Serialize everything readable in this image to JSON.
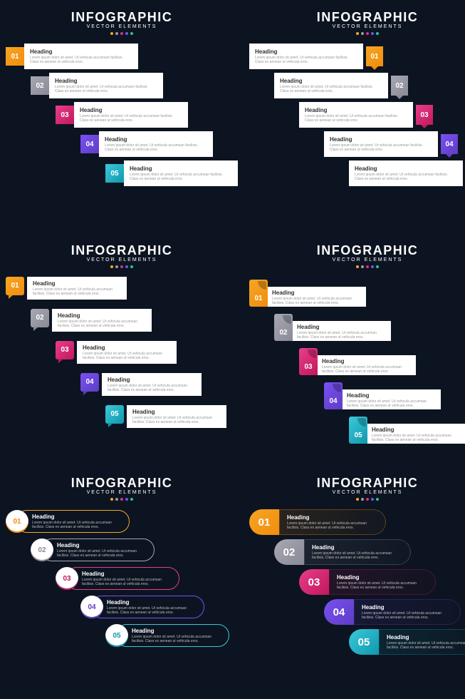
{
  "global": {
    "title": "INFOGRAPHIC",
    "subtitle": "VECTOR ELEMENTS",
    "dot_colors": [
      "#f5a623",
      "#9b9b9b",
      "#d63384",
      "#7950f2",
      "#20c997"
    ],
    "heading": "Heading",
    "body": "Lorem ipsum dolor sit amet. Ut vehicula accumsan facilisis. Class ex aenean ut vehicula eros.",
    "background": "#0c1421",
    "card_bg": "#ffffff",
    "text_color": "#333333",
    "muted_color": "#999999"
  },
  "colors": [
    {
      "num": "01",
      "fill": "#f5a623",
      "grad": "#f28c0e",
      "text": "#ffffff"
    },
    {
      "num": "02",
      "fill": "#a8a8b3",
      "grad": "#8a8a98",
      "text": "#ffffff"
    },
    {
      "num": "03",
      "fill": "#e83e8c",
      "grad": "#c2185b",
      "text": "#ffffff"
    },
    {
      "num": "04",
      "fill": "#7950f2",
      "grad": "#5f3dc4",
      "text": "#ffffff"
    },
    {
      "num": "05",
      "fill": "#3bc9db",
      "grad": "#1098ad",
      "text": "#ffffff"
    }
  ],
  "variants": {
    "v1": {
      "type": "square-badge-left",
      "stagger": 35
    },
    "v2": {
      "type": "arrow-badge-right",
      "stagger": 35
    },
    "v3": {
      "type": "speech-bubble-left",
      "stagger": 35
    },
    "v4": {
      "type": "folded-tab-left",
      "stagger": 35
    },
    "v5": {
      "type": "pill-outline",
      "stagger": 35,
      "card_border": "1.5px",
      "card_bg": "transparent"
    },
    "v6": {
      "type": "pill-filled",
      "stagger": 35,
      "card_bg_tint": 0.15
    }
  }
}
